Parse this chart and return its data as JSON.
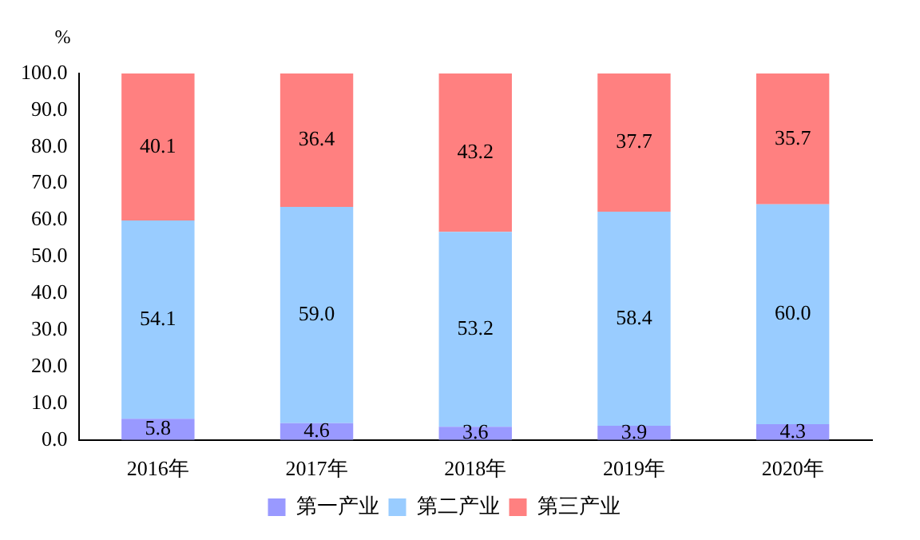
{
  "chart_data": {
    "type": "bar",
    "stacked": true,
    "ylabel": "%",
    "categories": [
      "2016年",
      "2017年",
      "2018年",
      "2019年",
      "2020年"
    ],
    "series": [
      {
        "name": "第一产业",
        "color": "#9999ff",
        "values": [
          5.8,
          4.6,
          3.6,
          3.9,
          4.3
        ],
        "value_labels": [
          "5.8",
          "4.6",
          "3.6",
          "3.9",
          "4.3"
        ]
      },
      {
        "name": "第二产业",
        "color": "#99ccff",
        "values": [
          54.1,
          59.0,
          53.2,
          58.4,
          60.0
        ],
        "value_labels": [
          "54.1",
          "59.0",
          "53.2",
          "58.4",
          "60.0"
        ]
      },
      {
        "name": "第三产业",
        "color": "#ff8080",
        "values": [
          40.1,
          36.4,
          43.2,
          37.7,
          35.7
        ],
        "value_labels": [
          "40.1",
          "36.4",
          "43.2",
          "37.7",
          "35.7"
        ]
      }
    ],
    "ylim": [
      0,
      100
    ],
    "yticks": [
      {
        "value": 0,
        "label": "0.0"
      },
      {
        "value": 10,
        "label": "10.0"
      },
      {
        "value": 20,
        "label": "20.0"
      },
      {
        "value": 30,
        "label": "30.0"
      },
      {
        "value": 40,
        "label": "40.0"
      },
      {
        "value": 50,
        "label": "50.0"
      },
      {
        "value": 60,
        "label": "60.0"
      },
      {
        "value": 70,
        "label": "70.0"
      },
      {
        "value": 80,
        "label": "80.0"
      },
      {
        "value": 90,
        "label": "90.0"
      },
      {
        "value": 100,
        "label": "100.0"
      }
    ],
    "grid": false,
    "legend": "bottom"
  }
}
